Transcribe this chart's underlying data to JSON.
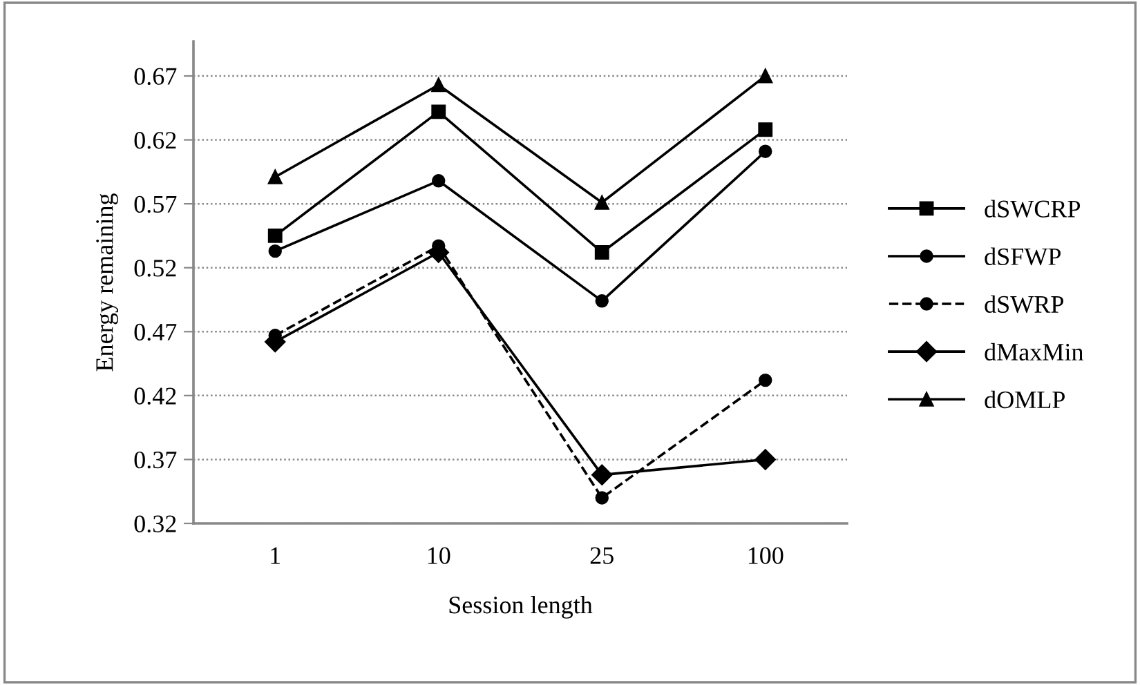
{
  "chart_data": {
    "type": "line",
    "xlabel": "Session length",
    "ylabel": "Energy remaining",
    "categories": [
      "1",
      "10",
      "25",
      "100"
    ],
    "series": [
      {
        "name": "dSWCRP",
        "color": "#000000",
        "marker": "square",
        "line_style": "solid",
        "values": [
          0.545,
          0.642,
          0.532,
          0.628
        ]
      },
      {
        "name": "dSFWP",
        "color": "#000000",
        "marker": "circle",
        "line_style": "solid",
        "values": [
          0.533,
          0.588,
          0.494,
          0.611
        ]
      },
      {
        "name": "dSWRP",
        "color": "#000000",
        "marker": "circle",
        "line_style": "dashed",
        "values": [
          0.467,
          0.537,
          0.34,
          0.432
        ]
      },
      {
        "name": "dMaxMin",
        "color": "#000000",
        "marker": "diamond",
        "line_style": "solid",
        "values": [
          0.462,
          0.532,
          0.358,
          0.37
        ]
      },
      {
        "name": "dOMLP",
        "color": "#000000",
        "marker": "triangle",
        "line_style": "solid",
        "values": [
          0.591,
          0.663,
          0.571,
          0.67
        ]
      }
    ],
    "ylim": [
      0.32,
      0.697
    ],
    "yticks": [
      0.32,
      0.37,
      0.42,
      0.47,
      0.52,
      0.57,
      0.62,
      0.67
    ],
    "grid": "y",
    "legend": "right"
  }
}
